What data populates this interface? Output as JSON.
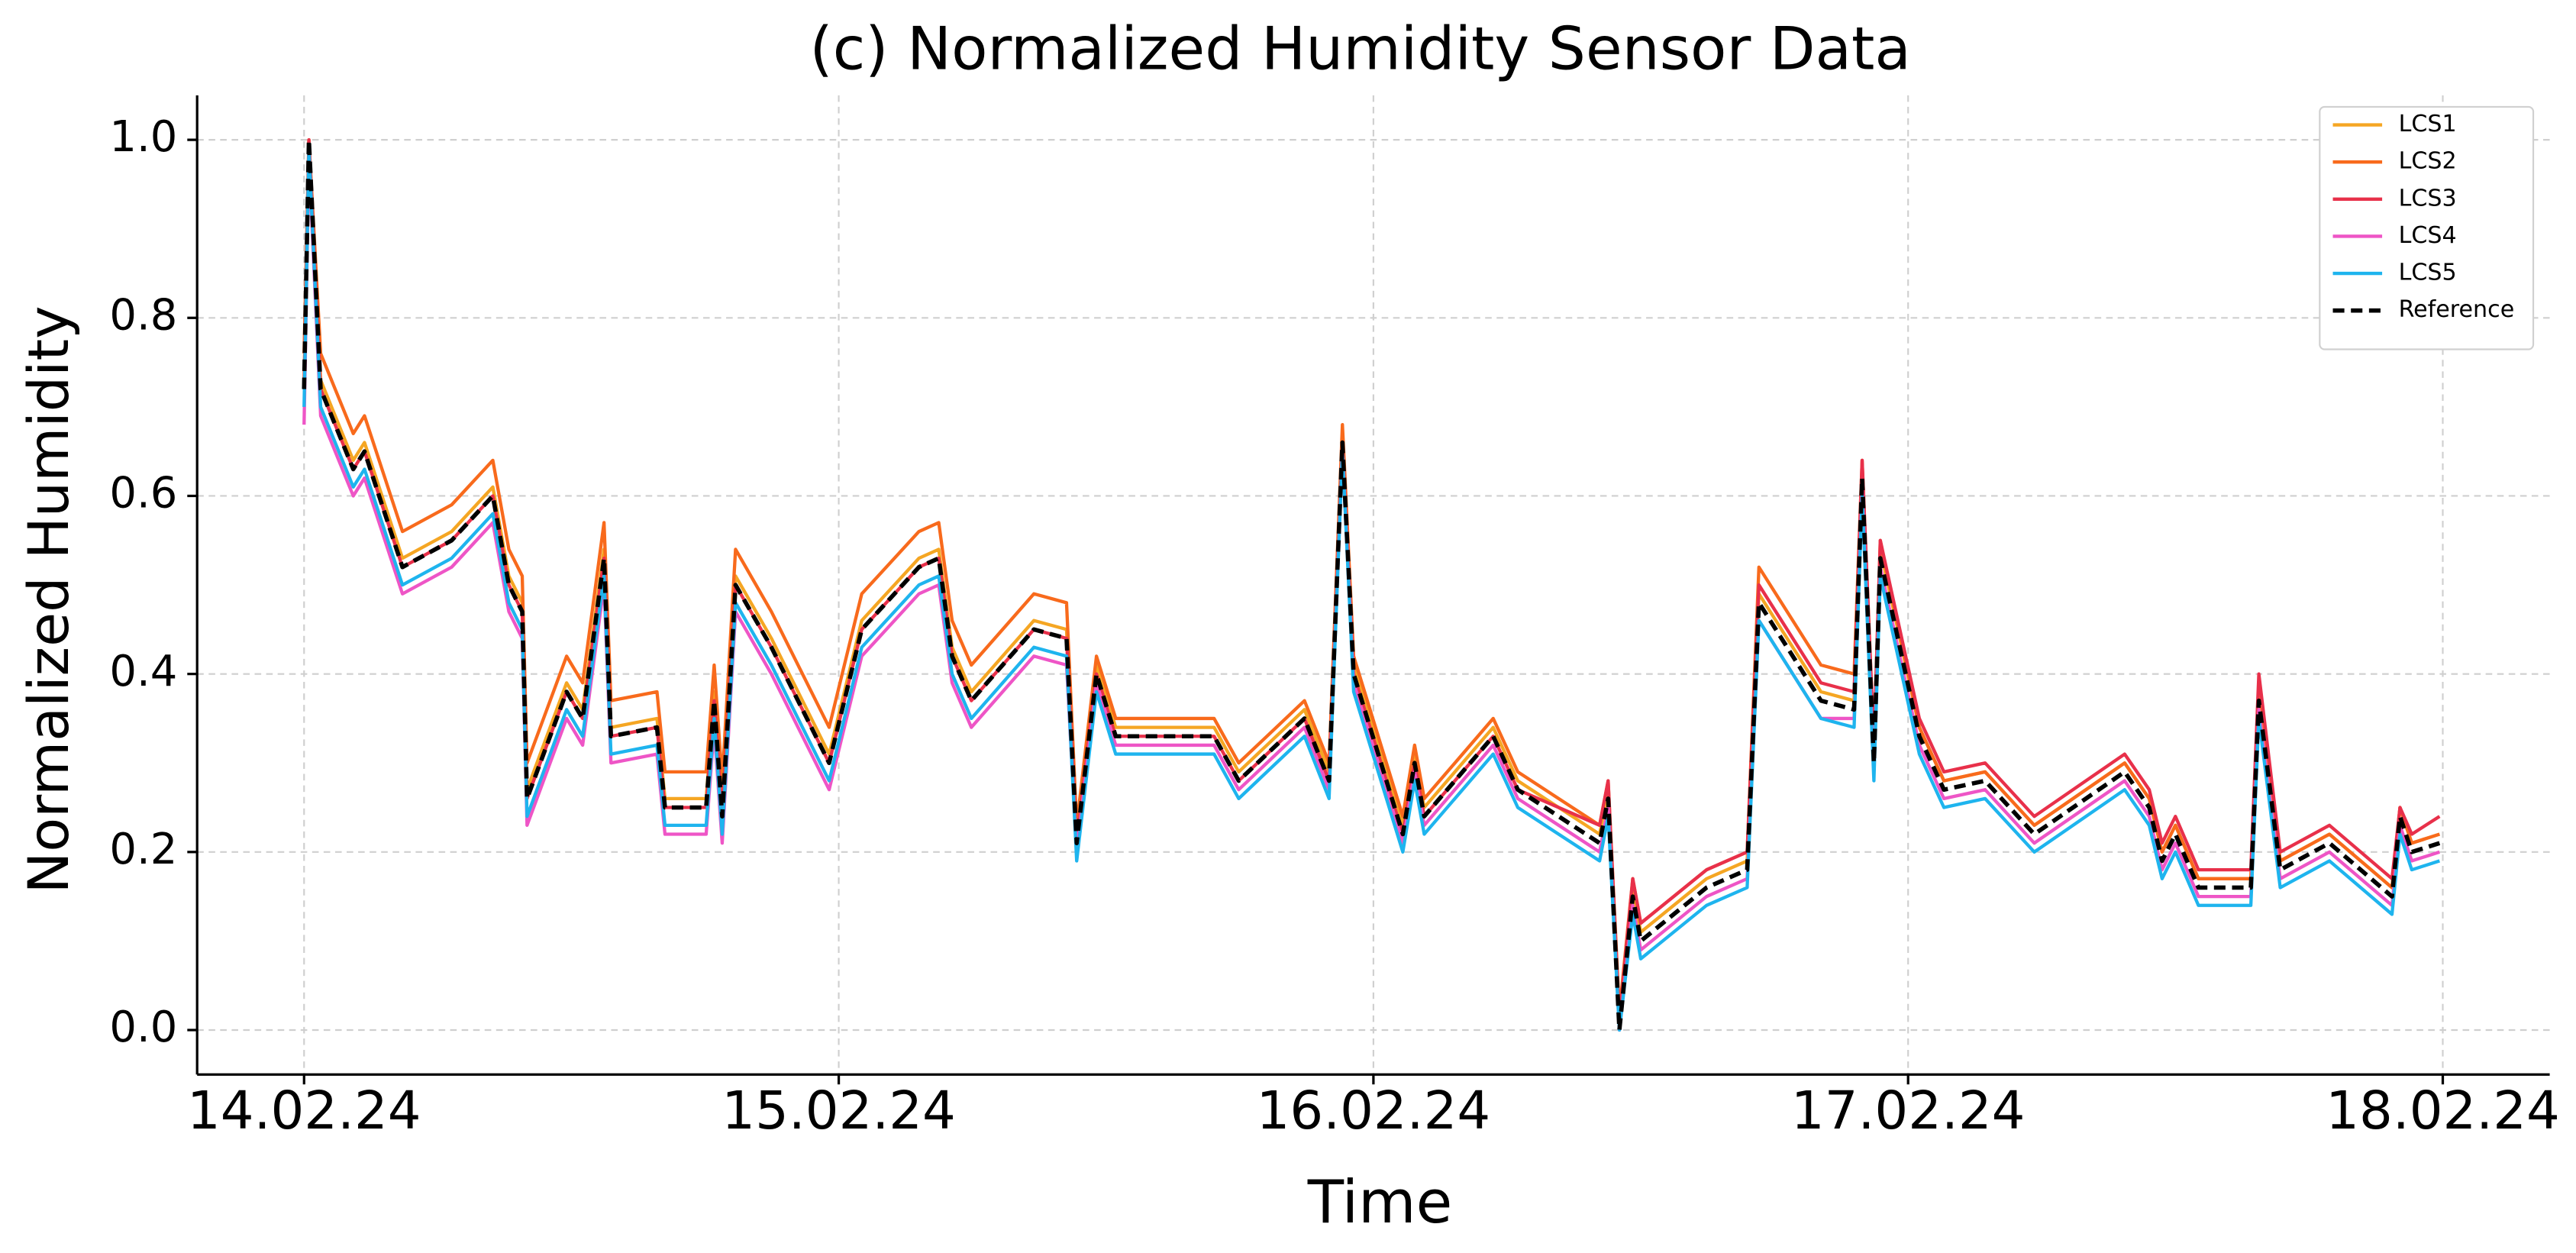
{
  "chart_data": {
    "type": "line",
    "title": "(c) Normalized Humidity Sensor Data",
    "x_label": "Time",
    "y_label": "Normalized Humidity",
    "x": [
      0,
      0.009,
      0.031,
      0.092,
      0.113,
      0.184,
      0.276,
      0.353,
      0.383,
      0.408,
      0.417,
      0.491,
      0.521,
      0.561,
      0.574,
      0.66,
      0.675,
      0.752,
      0.767,
      0.782,
      0.807,
      0.874,
      0.982,
      1.043,
      1.15,
      1.187,
      1.212,
      1.248,
      1.365,
      1.426,
      1.445,
      1.482,
      1.518,
      1.702,
      1.748,
      1.871,
      1.917,
      1.942,
      1.963,
      2.055,
      2.077,
      2.095,
      2.224,
      2.27,
      2.423,
      2.439,
      2.46,
      2.485,
      2.5,
      2.623,
      2.699,
      2.721,
      2.837,
      2.899,
      2.914,
      2.936,
      2.948,
      3.021,
      3.067,
      3.144,
      3.236,
      3.405,
      3.451,
      3.475,
      3.5,
      3.543,
      3.641,
      3.656,
      3.696,
      3.788,
      3.905,
      3.92,
      3.942,
      3.994
    ],
    "series": [
      {
        "name": "LCS1",
        "color": "#f5a623",
        "values": [
          0.73,
          1.0,
          0.73,
          0.64,
          0.66,
          0.53,
          0.56,
          0.61,
          0.51,
          0.48,
          0.27,
          0.39,
          0.36,
          0.54,
          0.34,
          0.35,
          0.26,
          0.26,
          0.38,
          0.25,
          0.51,
          0.44,
          0.31,
          0.46,
          0.53,
          0.54,
          0.43,
          0.38,
          0.46,
          0.45,
          0.22,
          0.41,
          0.34,
          0.34,
          0.29,
          0.36,
          0.29,
          0.67,
          0.41,
          0.23,
          0.31,
          0.25,
          0.34,
          0.28,
          0.22,
          0.27,
          0.01,
          0.16,
          0.11,
          0.17,
          0.19,
          0.49,
          0.38,
          0.37,
          0.63,
          0.31,
          0.54,
          0.34,
          0.28,
          0.29,
          0.23,
          0.3,
          0.26,
          0.2,
          0.23,
          0.17,
          0.17,
          0.38,
          0.19,
          0.22,
          0.16,
          0.25,
          0.21,
          0.22
        ]
      },
      {
        "name": "LCS2",
        "color": "#f86a1c",
        "values": [
          0.76,
          1.0,
          0.76,
          0.67,
          0.69,
          0.56,
          0.59,
          0.64,
          0.54,
          0.51,
          0.3,
          0.42,
          0.39,
          0.57,
          0.37,
          0.38,
          0.29,
          0.29,
          0.41,
          0.28,
          0.54,
          0.47,
          0.34,
          0.49,
          0.56,
          0.57,
          0.46,
          0.41,
          0.49,
          0.48,
          0.23,
          0.42,
          0.35,
          0.35,
          0.3,
          0.37,
          0.3,
          0.68,
          0.42,
          0.24,
          0.32,
          0.26,
          0.35,
          0.29,
          0.23,
          0.28,
          0.02,
          0.17,
          0.12,
          0.18,
          0.2,
          0.52,
          0.41,
          0.4,
          0.64,
          0.32,
          0.55,
          0.34,
          0.28,
          0.29,
          0.23,
          0.3,
          0.26,
          0.2,
          0.23,
          0.17,
          0.17,
          0.38,
          0.19,
          0.22,
          0.16,
          0.25,
          0.21,
          0.22
        ]
      },
      {
        "name": "LCS3",
        "color": "#e8304a",
        "values": [
          0.72,
          1.0,
          0.72,
          0.63,
          0.65,
          0.52,
          0.55,
          0.6,
          0.5,
          0.47,
          0.26,
          0.38,
          0.35,
          0.53,
          0.33,
          0.34,
          0.25,
          0.25,
          0.37,
          0.24,
          0.5,
          0.43,
          0.3,
          0.45,
          0.52,
          0.53,
          0.42,
          0.37,
          0.45,
          0.44,
          0.21,
          0.4,
          0.33,
          0.33,
          0.28,
          0.35,
          0.28,
          0.66,
          0.4,
          0.22,
          0.3,
          0.24,
          0.33,
          0.27,
          0.23,
          0.28,
          0.01,
          0.17,
          0.12,
          0.18,
          0.2,
          0.5,
          0.39,
          0.38,
          0.64,
          0.32,
          0.55,
          0.35,
          0.29,
          0.3,
          0.24,
          0.31,
          0.27,
          0.21,
          0.24,
          0.18,
          0.18,
          0.4,
          0.2,
          0.23,
          0.17,
          0.25,
          0.22,
          0.24
        ]
      },
      {
        "name": "LCS4",
        "color": "#ee55c6",
        "values": [
          0.68,
          0.98,
          0.69,
          0.6,
          0.62,
          0.49,
          0.52,
          0.57,
          0.47,
          0.44,
          0.23,
          0.35,
          0.32,
          0.5,
          0.3,
          0.31,
          0.22,
          0.22,
          0.34,
          0.21,
          0.47,
          0.4,
          0.27,
          0.42,
          0.49,
          0.5,
          0.39,
          0.34,
          0.42,
          0.41,
          0.2,
          0.39,
          0.32,
          0.32,
          0.27,
          0.34,
          0.27,
          0.65,
          0.39,
          0.21,
          0.29,
          0.23,
          0.32,
          0.26,
          0.2,
          0.25,
          0,
          0.14,
          0.09,
          0.15,
          0.17,
          0.46,
          0.35,
          0.35,
          0.61,
          0.29,
          0.52,
          0.32,
          0.26,
          0.27,
          0.21,
          0.28,
          0.24,
          0.18,
          0.21,
          0.15,
          0.15,
          0.36,
          0.17,
          0.2,
          0.14,
          0.23,
          0.19,
          0.2
        ]
      },
      {
        "name": "LCS5",
        "color": "#1eb4ee",
        "values": [
          0.7,
          0.99,
          0.7,
          0.61,
          0.63,
          0.5,
          0.53,
          0.58,
          0.48,
          0.45,
          0.24,
          0.36,
          0.33,
          0.51,
          0.31,
          0.32,
          0.23,
          0.23,
          0.35,
          0.22,
          0.48,
          0.41,
          0.28,
          0.43,
          0.5,
          0.51,
          0.4,
          0.35,
          0.43,
          0.42,
          0.19,
          0.38,
          0.31,
          0.31,
          0.26,
          0.33,
          0.26,
          0.65,
          0.38,
          0.2,
          0.28,
          0.22,
          0.31,
          0.25,
          0.19,
          0.24,
          0,
          0.13,
          0.08,
          0.14,
          0.16,
          0.46,
          0.35,
          0.34,
          0.6,
          0.28,
          0.51,
          0.31,
          0.25,
          0.26,
          0.2,
          0.27,
          0.23,
          0.17,
          0.2,
          0.14,
          0.14,
          0.35,
          0.16,
          0.19,
          0.13,
          0.22,
          0.18,
          0.19
        ]
      },
      {
        "name": "Reference",
        "color": "#000000",
        "linestyle": "dashed",
        "values": [
          0.72,
          1.0,
          0.72,
          0.63,
          0.65,
          0.52,
          0.55,
          0.6,
          0.5,
          0.47,
          0.26,
          0.38,
          0.35,
          0.53,
          0.33,
          0.34,
          0.25,
          0.25,
          0.37,
          0.24,
          0.5,
          0.43,
          0.3,
          0.45,
          0.52,
          0.53,
          0.42,
          0.37,
          0.45,
          0.44,
          0.21,
          0.4,
          0.33,
          0.33,
          0.28,
          0.35,
          0.28,
          0.66,
          0.4,
          0.22,
          0.3,
          0.24,
          0.33,
          0.27,
          0.21,
          0.26,
          0,
          0.15,
          0.1,
          0.16,
          0.18,
          0.48,
          0.37,
          0.36,
          0.62,
          0.3,
          0.53,
          0.33,
          0.27,
          0.28,
          0.22,
          0.29,
          0.25,
          0.19,
          0.22,
          0.16,
          0.16,
          0.37,
          0.18,
          0.21,
          0.15,
          0.24,
          0.2,
          0.21
        ]
      }
    ],
    "xlim": [
      -0.2,
      4.2
    ],
    "xticks": [
      {
        "value": 0,
        "label": "14.02.24"
      },
      {
        "value": 1,
        "label": "15.02.24"
      },
      {
        "value": 2,
        "label": "16.02.24"
      },
      {
        "value": 3,
        "label": "17.02.24"
      },
      {
        "value": 4,
        "label": "18.02.24"
      }
    ],
    "ylim": [
      -0.05,
      1.05
    ],
    "yticks": [
      {
        "value": 0,
        "label": "0.0"
      },
      {
        "value": 0.2,
        "label": "0.2"
      },
      {
        "value": 0.4,
        "label": "0.4"
      },
      {
        "value": 0.6,
        "label": "0.6"
      },
      {
        "value": 0.8,
        "label": "0.8"
      },
      {
        "value": 1,
        "label": "1.0"
      }
    ],
    "grid": true,
    "legend": "upper right"
  }
}
